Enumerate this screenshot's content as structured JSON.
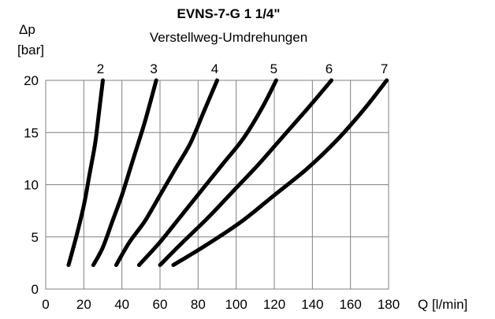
{
  "chart_data": {
    "type": "line",
    "title": "EVNS-7-G 1 1/4\"",
    "subtitle": "Verstellweg-Umdrehungen",
    "ylabel_line1": "Δp",
    "ylabel_line2": "[bar]",
    "xlabel": "Q [l/min]",
    "xlim": [
      0,
      180
    ],
    "ylim": [
      0,
      20
    ],
    "x_ticks": [
      0,
      20,
      40,
      60,
      80,
      100,
      120,
      140,
      160,
      180
    ],
    "y_ticks": [
      0,
      5,
      10,
      15,
      20
    ],
    "x_tick_labels": [
      "0",
      "20",
      "40",
      "60",
      "80",
      "100",
      "120",
      "140",
      "160",
      "180"
    ],
    "y_tick_labels": [
      "0",
      "5",
      "10",
      "15",
      "20"
    ],
    "grid": true,
    "series": [
      {
        "name": "2",
        "x": [
          12,
          16,
          20,
          23,
          26,
          28,
          30
        ],
        "y": [
          2.3,
          5,
          8,
          11,
          14,
          17,
          20
        ]
      },
      {
        "name": "3",
        "x": [
          25,
          30,
          35,
          40,
          46,
          52,
          58
        ],
        "y": [
          2.3,
          4,
          6.5,
          9,
          12.5,
          16,
          20
        ]
      },
      {
        "name": "4",
        "x": [
          37,
          44,
          52,
          60,
          68,
          76,
          83,
          90
        ],
        "y": [
          2.3,
          4.5,
          6.5,
          9,
          11.5,
          14,
          17,
          20
        ]
      },
      {
        "name": "5",
        "x": [
          49,
          60,
          71,
          82,
          93,
          104,
          114,
          121
        ],
        "y": [
          2.3,
          4.5,
          7,
          9.5,
          12,
          14.5,
          17.5,
          20
        ]
      },
      {
        "name": "6",
        "x": [
          60,
          72,
          85,
          98,
          111,
          124,
          137,
          150
        ],
        "y": [
          2.3,
          4.5,
          6.8,
          9.3,
          11.8,
          14.5,
          17.2,
          20
        ]
      },
      {
        "name": "7",
        "x": [
          67,
          85,
          103,
          120,
          137,
          153,
          167,
          179
        ],
        "y": [
          2.3,
          4.3,
          6.5,
          9,
          11.5,
          14.3,
          17.2,
          20
        ]
      }
    ]
  }
}
